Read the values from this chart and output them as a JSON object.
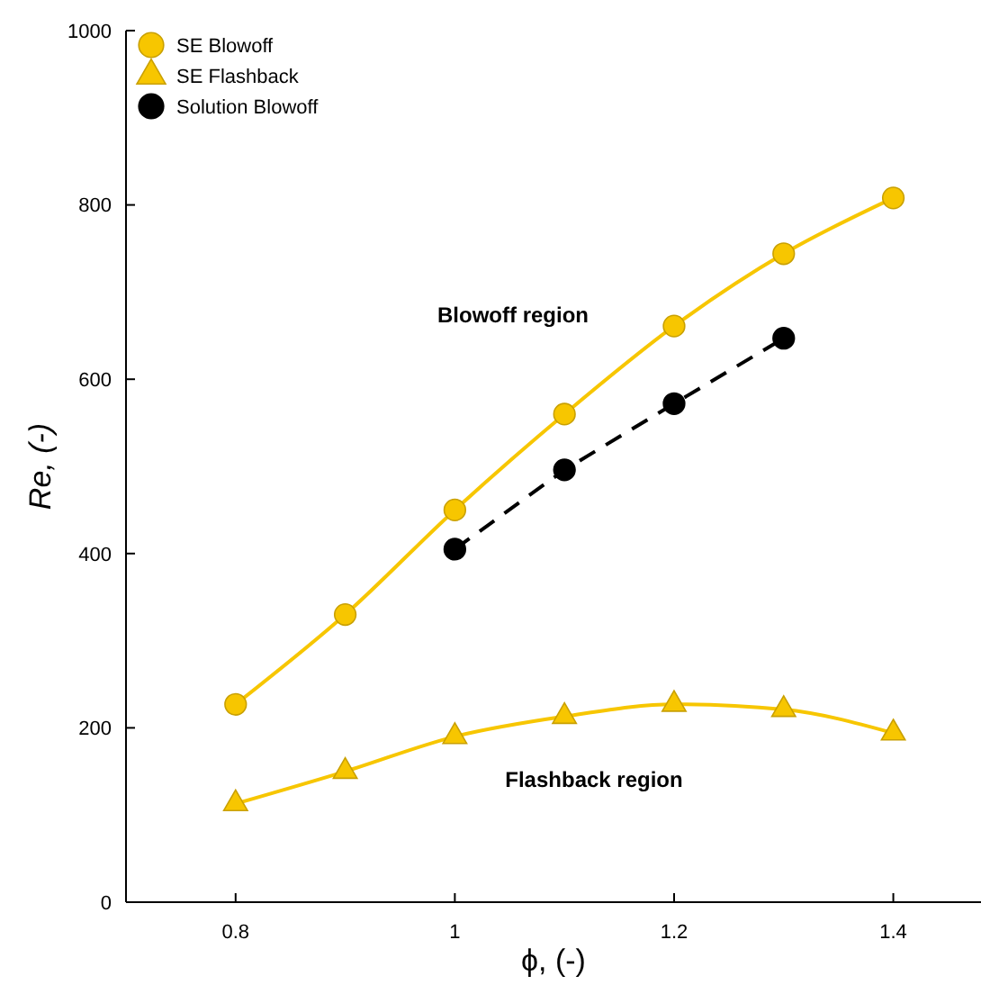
{
  "chart_data": {
    "type": "line",
    "xlabel": "ϕ, (-)",
    "ylabel": "Re, (-)",
    "x": [
      0.8,
      0.9,
      1,
      1.1,
      1.2,
      1.3,
      1.4
    ],
    "xlim": [
      0.7,
      1.48
    ],
    "xticks": [
      0.8,
      1,
      1.2,
      1.4
    ],
    "ylim": [
      0,
      1000
    ],
    "yticks": [
      0,
      200,
      400,
      600,
      800,
      1000
    ],
    "grid": false,
    "legend": "top left",
    "series": [
      {
        "name": "SE Blowoff",
        "color": "#f7c600",
        "marker": "circle",
        "line_style": "solid",
        "values": [
          227,
          330,
          450,
          560,
          661,
          744,
          808
        ]
      },
      {
        "name": "SE Flashback",
        "color": "#f7c600",
        "marker": "triangle",
        "line_style": "solid",
        "values": [
          113,
          150,
          190,
          213,
          227,
          221,
          194
        ]
      },
      {
        "name": "Solution Blowoff",
        "color": "#000000",
        "marker": "circle",
        "line_style": "dashed",
        "x": [
          1,
          1.1,
          1.2,
          1.3
        ],
        "values": [
          405,
          496,
          572,
          647
        ]
      }
    ],
    "annotations": [
      "Blowoff region",
      "Flashback region"
    ]
  }
}
